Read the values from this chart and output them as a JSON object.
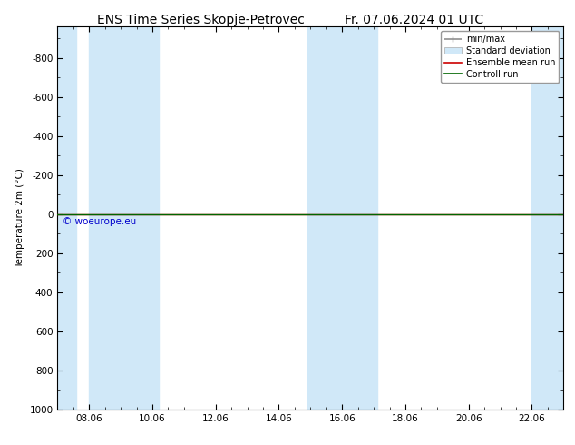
{
  "title": "ENS Time Series Skopje-Petrovec",
  "title2": "Fr. 07.06.2024 01 UTC",
  "ylabel": "Temperature 2m (°C)",
  "watermark": "© woeurope.eu",
  "watermark_color": "#0000cc",
  "ylim_bottom": 1000,
  "ylim_top": -960,
  "yticks": [
    -800,
    -600,
    -400,
    -200,
    0,
    200,
    400,
    600,
    800,
    1000
  ],
  "ytick_labels": [
    "-800",
    "-600",
    "-400",
    "-200",
    "0",
    "200",
    "400",
    "600",
    "800",
    "1000"
  ],
  "xmin": 7.0,
  "xmax": 23.0,
  "xticks": [
    8.0,
    10.0,
    12.0,
    14.0,
    16.0,
    18.0,
    20.0,
    22.0
  ],
  "xtick_labels": [
    "08.06",
    "10.06",
    "12.06",
    "14.06",
    "16.06",
    "18.06",
    "20.06",
    "22.06"
  ],
  "shaded_bands_x": [
    [
      7.0,
      7.6
    ],
    [
      8.0,
      10.2
    ],
    [
      14.9,
      16.5
    ],
    [
      16.5,
      17.1
    ],
    [
      22.0,
      23.0
    ]
  ],
  "shade_color": "#d0e8f8",
  "shade_alpha": 1.0,
  "control_run_y": 0.0,
  "ensemble_mean_y": 0.0,
  "line_color_control": "#006600",
  "line_color_ensemble": "#cc0000",
  "line_width": 1.0,
  "legend_labels": [
    "min/max",
    "Standard deviation",
    "Ensemble mean run",
    "Controll run"
  ],
  "legend_color_minmax": "#909090",
  "legend_color_std": "#d0e8f8",
  "legend_color_ensemble": "#cc0000",
  "legend_color_control": "#006600",
  "bg_color": "#ffffff",
  "plot_bg_color": "#ffffff",
  "font_size_title": 10,
  "font_size_axis": 7.5,
  "font_size_legend": 7,
  "font_size_watermark": 7.5
}
